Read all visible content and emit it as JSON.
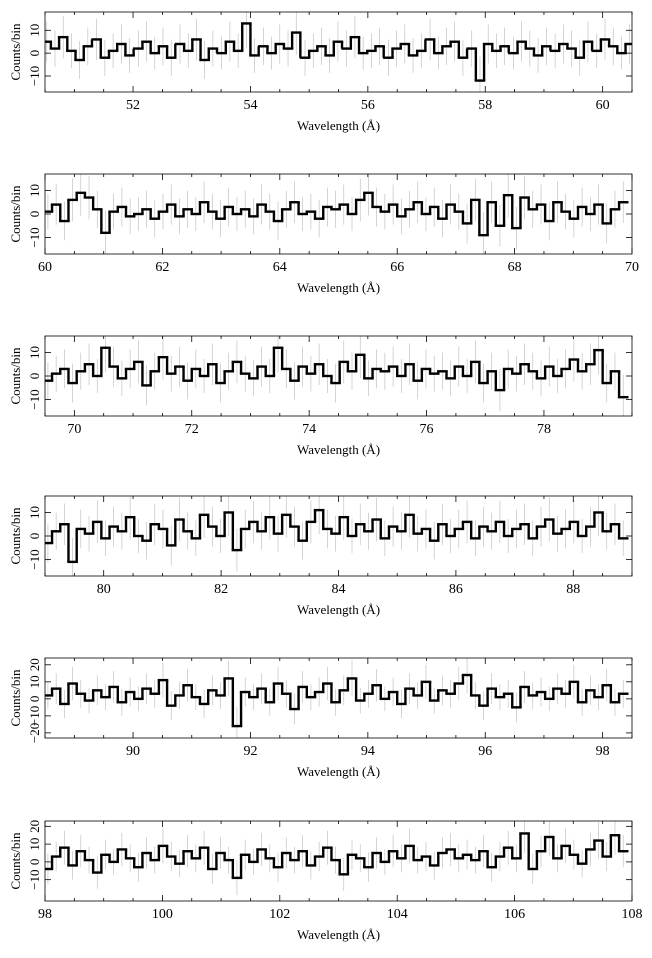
{
  "chart_data": [
    {
      "type": "line",
      "style": "step-histogram-with-error-bars",
      "xlabel": "Wavelength (Å)",
      "ylabel": "Counts/bin",
      "xlim": [
        50.5,
        60.5
      ],
      "ylim": [
        -17,
        18
      ],
      "xticks": [
        52,
        54,
        56,
        58,
        60
      ],
      "yticks": [
        -10,
        0,
        10
      ],
      "x": [
        50.53,
        50.67,
        50.81,
        50.95,
        51.09,
        51.23,
        51.38,
        51.52,
        51.66,
        51.8,
        51.94,
        52.09,
        52.23,
        52.37,
        52.51,
        52.65,
        52.8,
        52.94,
        53.08,
        53.22,
        53.36,
        53.51,
        53.65,
        53.79,
        53.93,
        54.07,
        54.22,
        54.36,
        54.5,
        54.64,
        54.78,
        54.93,
        55.07,
        55.21,
        55.35,
        55.49,
        55.64,
        55.78,
        55.92,
        56.06,
        56.2,
        56.35,
        56.49,
        56.63,
        56.77,
        56.91,
        57.06,
        57.2,
        57.34,
        57.48,
        57.62,
        57.77,
        57.91,
        58.05,
        58.19,
        58.33,
        58.48,
        58.62,
        58.76,
        58.9,
        59.04,
        59.19,
        59.33,
        59.47,
        59.61,
        59.75,
        59.9,
        60.04,
        60.18,
        60.32,
        60.46
      ],
      "values": [
        5,
        2,
        7,
        1,
        -3,
        3,
        6,
        -2,
        1,
        4,
        -1,
        2,
        5,
        0,
        3,
        -2,
        4,
        1,
        6,
        -3,
        2,
        0,
        5,
        1,
        13,
        -1,
        3,
        0,
        4,
        2,
        9,
        -2,
        1,
        3,
        -1,
        5,
        2,
        7,
        0,
        1,
        3,
        -2,
        2,
        4,
        -1,
        1,
        6,
        0,
        3,
        5,
        -2,
        2,
        -12,
        4,
        1,
        3,
        0,
        5,
        2,
        -1,
        3,
        1,
        4,
        2,
        -2,
        5,
        1,
        6,
        3,
        0,
        4
      ]
    },
    {
      "type": "line",
      "style": "step-histogram-with-error-bars",
      "xlabel": "Wavelength (Å)",
      "ylabel": "Counts/bin",
      "xlim": [
        60,
        70
      ],
      "ylim": [
        -17,
        17
      ],
      "xticks": [
        60,
        62,
        64,
        66,
        68,
        70
      ],
      "yticks": [
        -10,
        0,
        10
      ],
      "x": [
        60.05,
        60.19,
        60.33,
        60.47,
        60.61,
        60.75,
        60.89,
        61.03,
        61.17,
        61.31,
        61.45,
        61.59,
        61.73,
        61.87,
        62.01,
        62.15,
        62.29,
        62.43,
        62.57,
        62.71,
        62.85,
        62.99,
        63.13,
        63.27,
        63.41,
        63.55,
        63.69,
        63.83,
        63.97,
        64.11,
        64.25,
        64.39,
        64.53,
        64.67,
        64.81,
        64.95,
        65.09,
        65.23,
        65.37,
        65.51,
        65.65,
        65.79,
        65.93,
        66.07,
        66.21,
        66.35,
        66.49,
        66.63,
        66.77,
        66.91,
        67.05,
        67.19,
        67.33,
        67.47,
        67.61,
        67.75,
        67.89,
        68.03,
        68.17,
        68.31,
        68.45,
        68.59,
        68.73,
        68.87,
        69.01,
        69.15,
        69.29,
        69.43,
        69.57,
        69.71,
        69.85
      ],
      "values": [
        1,
        4,
        -3,
        6,
        9,
        7,
        2,
        -8,
        1,
        3,
        -1,
        0,
        2,
        -2,
        1,
        4,
        -1,
        2,
        0,
        5,
        1,
        -2,
        3,
        0,
        2,
        -1,
        4,
        1,
        -3,
        2,
        5,
        0,
        1,
        -2,
        3,
        2,
        4,
        0,
        6,
        9,
        3,
        1,
        4,
        -1,
        2,
        5,
        0,
        3,
        -2,
        4,
        1,
        -4,
        6,
        -9,
        5,
        -5,
        8,
        -6,
        7,
        2,
        4,
        -3,
        5,
        1,
        -2,
        3,
        0,
        4,
        -4,
        2,
        5
      ]
    },
    {
      "type": "line",
      "style": "step-histogram-with-error-bars",
      "xlabel": "Wavelength (Å)",
      "ylabel": "Counts/bin",
      "xlim": [
        69.5,
        79.5
      ],
      "ylim": [
        -17,
        17
      ],
      "xticks": [
        70,
        72,
        74,
        76,
        78
      ],
      "yticks": [
        -10,
        0,
        10
      ],
      "x": [
        69.55,
        69.69,
        69.83,
        69.97,
        70.11,
        70.25,
        70.39,
        70.53,
        70.67,
        70.81,
        70.95,
        71.09,
        71.23,
        71.37,
        71.51,
        71.65,
        71.79,
        71.93,
        72.07,
        72.21,
        72.35,
        72.49,
        72.63,
        72.77,
        72.91,
        73.05,
        73.19,
        73.33,
        73.47,
        73.61,
        73.75,
        73.89,
        74.03,
        74.17,
        74.31,
        74.45,
        74.59,
        74.73,
        74.87,
        75.01,
        75.15,
        75.29,
        75.43,
        75.57,
        75.71,
        75.85,
        75.99,
        76.13,
        76.27,
        76.41,
        76.55,
        76.69,
        76.83,
        76.97,
        77.11,
        77.25,
        77.39,
        77.53,
        77.67,
        77.81,
        77.95,
        78.09,
        78.23,
        78.37,
        78.51,
        78.65,
        78.79,
        78.93,
        79.07,
        79.21,
        79.35
      ],
      "values": [
        -2,
        1,
        3,
        -3,
        2,
        5,
        0,
        12,
        4,
        -1,
        3,
        6,
        -4,
        2,
        8,
        1,
        4,
        -2,
        3,
        0,
        5,
        -3,
        2,
        6,
        1,
        -1,
        4,
        0,
        12,
        3,
        -2,
        4,
        1,
        5,
        0,
        -3,
        6,
        2,
        9,
        -1,
        3,
        2,
        4,
        0,
        5,
        -2,
        3,
        1,
        2,
        -1,
        4,
        0,
        6,
        -3,
        2,
        -6,
        3,
        1,
        5,
        2,
        -1,
        4,
        0,
        3,
        7,
        2,
        5,
        11,
        -3,
        2,
        -9
      ]
    },
    {
      "type": "line",
      "style": "step-histogram-with-error-bars",
      "xlabel": "Wavelength (Å)",
      "ylabel": "Counts/bin",
      "xlim": [
        79,
        89
      ],
      "ylim": [
        -17,
        17
      ],
      "xticks": [
        80,
        82,
        84,
        86,
        88
      ],
      "yticks": [
        -10,
        0,
        10
      ],
      "x": [
        79.05,
        79.19,
        79.33,
        79.47,
        79.61,
        79.75,
        79.89,
        80.03,
        80.17,
        80.31,
        80.45,
        80.59,
        80.73,
        80.87,
        81.01,
        81.15,
        81.29,
        81.43,
        81.57,
        81.71,
        81.85,
        81.99,
        82.13,
        82.27,
        82.41,
        82.55,
        82.69,
        82.83,
        82.97,
        83.11,
        83.25,
        83.39,
        83.53,
        83.67,
        83.81,
        83.95,
        84.09,
        84.23,
        84.37,
        84.51,
        84.65,
        84.79,
        84.93,
        85.07,
        85.21,
        85.35,
        85.49,
        85.63,
        85.77,
        85.91,
        86.05,
        86.19,
        86.33,
        86.47,
        86.61,
        86.75,
        86.89,
        87.03,
        87.17,
        87.31,
        87.45,
        87.59,
        87.73,
        87.87,
        88.01,
        88.15,
        88.29,
        88.43,
        88.57,
        88.71,
        88.85
      ],
      "values": [
        -3,
        2,
        5,
        -11,
        3,
        1,
        6,
        -1,
        4,
        2,
        8,
        0,
        -2,
        5,
        3,
        -4,
        7,
        2,
        -1,
        9,
        4,
        0,
        10,
        -6,
        3,
        6,
        2,
        8,
        1,
        9,
        4,
        -2,
        6,
        11,
        3,
        1,
        8,
        0,
        5,
        2,
        7,
        -1,
        4,
        2,
        9,
        1,
        3,
        -2,
        5,
        0,
        3,
        6,
        -1,
        4,
        2,
        6,
        0,
        3,
        5,
        -1,
        4,
        7,
        1,
        3,
        6,
        0,
        4,
        10,
        2,
        5,
        -1
      ]
    },
    {
      "type": "line",
      "style": "step-histogram-with-error-bars",
      "xlabel": "Wavelength (Å)",
      "ylabel": "Counts/bin",
      "xlim": [
        88.5,
        98.5
      ],
      "ylim": [
        -23,
        24
      ],
      "xticks": [
        90,
        92,
        94,
        96,
        98
      ],
      "yticks": [
        -20,
        -10,
        0,
        10,
        20
      ],
      "x": [
        88.55,
        88.69,
        88.83,
        88.97,
        89.11,
        89.25,
        89.39,
        89.53,
        89.67,
        89.81,
        89.95,
        90.09,
        90.23,
        90.37,
        90.51,
        90.65,
        90.79,
        90.93,
        91.07,
        91.21,
        91.35,
        91.49,
        91.63,
        91.77,
        91.91,
        92.05,
        92.19,
        92.33,
        92.47,
        92.61,
        92.75,
        92.89,
        93.03,
        93.17,
        93.31,
        93.45,
        93.59,
        93.73,
        93.87,
        94.01,
        94.15,
        94.29,
        94.43,
        94.57,
        94.71,
        94.85,
        94.99,
        95.13,
        95.27,
        95.41,
        95.55,
        95.69,
        95.83,
        95.97,
        96.11,
        96.25,
        96.39,
        96.53,
        96.67,
        96.81,
        96.95,
        97.09,
        97.23,
        97.37,
        97.51,
        97.65,
        97.79,
        97.93,
        98.07,
        98.21,
        98.35
      ],
      "values": [
        2,
        6,
        -3,
        9,
        3,
        -1,
        5,
        1,
        7,
        -2,
        4,
        0,
        6,
        3,
        11,
        -4,
        2,
        8,
        1,
        -3,
        5,
        2,
        12,
        -16,
        4,
        1,
        6,
        -2,
        9,
        3,
        -6,
        7,
        1,
        4,
        9,
        -2,
        5,
        12,
        -1,
        3,
        8,
        0,
        4,
        -3,
        6,
        2,
        10,
        -1,
        5,
        3,
        9,
        14,
        2,
        -4,
        6,
        1,
        3,
        -5,
        7,
        2,
        4,
        0,
        6,
        3,
        10,
        -2,
        5,
        1,
        8,
        -2,
        3
      ]
    },
    {
      "type": "line",
      "style": "step-histogram-with-error-bars",
      "xlabel": "Wavelength (Å)",
      "ylabel": "Counts/bin",
      "xlim": [
        98,
        108
      ],
      "ylim": [
        -22,
        23
      ],
      "xticks": [
        98,
        100,
        102,
        104,
        106,
        108
      ],
      "yticks": [
        -10,
        0,
        10,
        20
      ],
      "x": [
        98.05,
        98.19,
        98.33,
        98.47,
        98.61,
        98.75,
        98.89,
        99.03,
        99.17,
        99.31,
        99.45,
        99.59,
        99.73,
        99.87,
        100.01,
        100.15,
        100.29,
        100.43,
        100.57,
        100.71,
        100.85,
        100.99,
        101.13,
        101.27,
        101.41,
        101.55,
        101.69,
        101.83,
        101.97,
        102.11,
        102.25,
        102.39,
        102.53,
        102.67,
        102.81,
        102.95,
        103.09,
        103.23,
        103.37,
        103.51,
        103.65,
        103.79,
        103.93,
        104.07,
        104.21,
        104.35,
        104.49,
        104.63,
        104.77,
        104.91,
        105.05,
        105.19,
        105.33,
        105.47,
        105.61,
        105.75,
        105.89,
        106.03,
        106.17,
        106.31,
        106.45,
        106.59,
        106.73,
        106.87,
        107.01,
        107.15,
        107.29,
        107.43,
        107.57,
        107.71,
        107.85
      ],
      "values": [
        -4,
        3,
        8,
        -2,
        6,
        1,
        -6,
        4,
        0,
        7,
        2,
        -3,
        5,
        1,
        9,
        3,
        -1,
        6,
        2,
        8,
        -4,
        5,
        1,
        -9,
        4,
        0,
        7,
        2,
        -3,
        5,
        1,
        6,
        -2,
        3,
        8,
        1,
        -7,
        4,
        2,
        -3,
        5,
        0,
        6,
        2,
        9,
        1,
        3,
        -2,
        5,
        7,
        2,
        4,
        1,
        6,
        -3,
        3,
        8,
        2,
        16,
        -4,
        6,
        14,
        2,
        9,
        4,
        -1,
        7,
        12,
        3,
        15,
        6
      ]
    }
  ]
}
